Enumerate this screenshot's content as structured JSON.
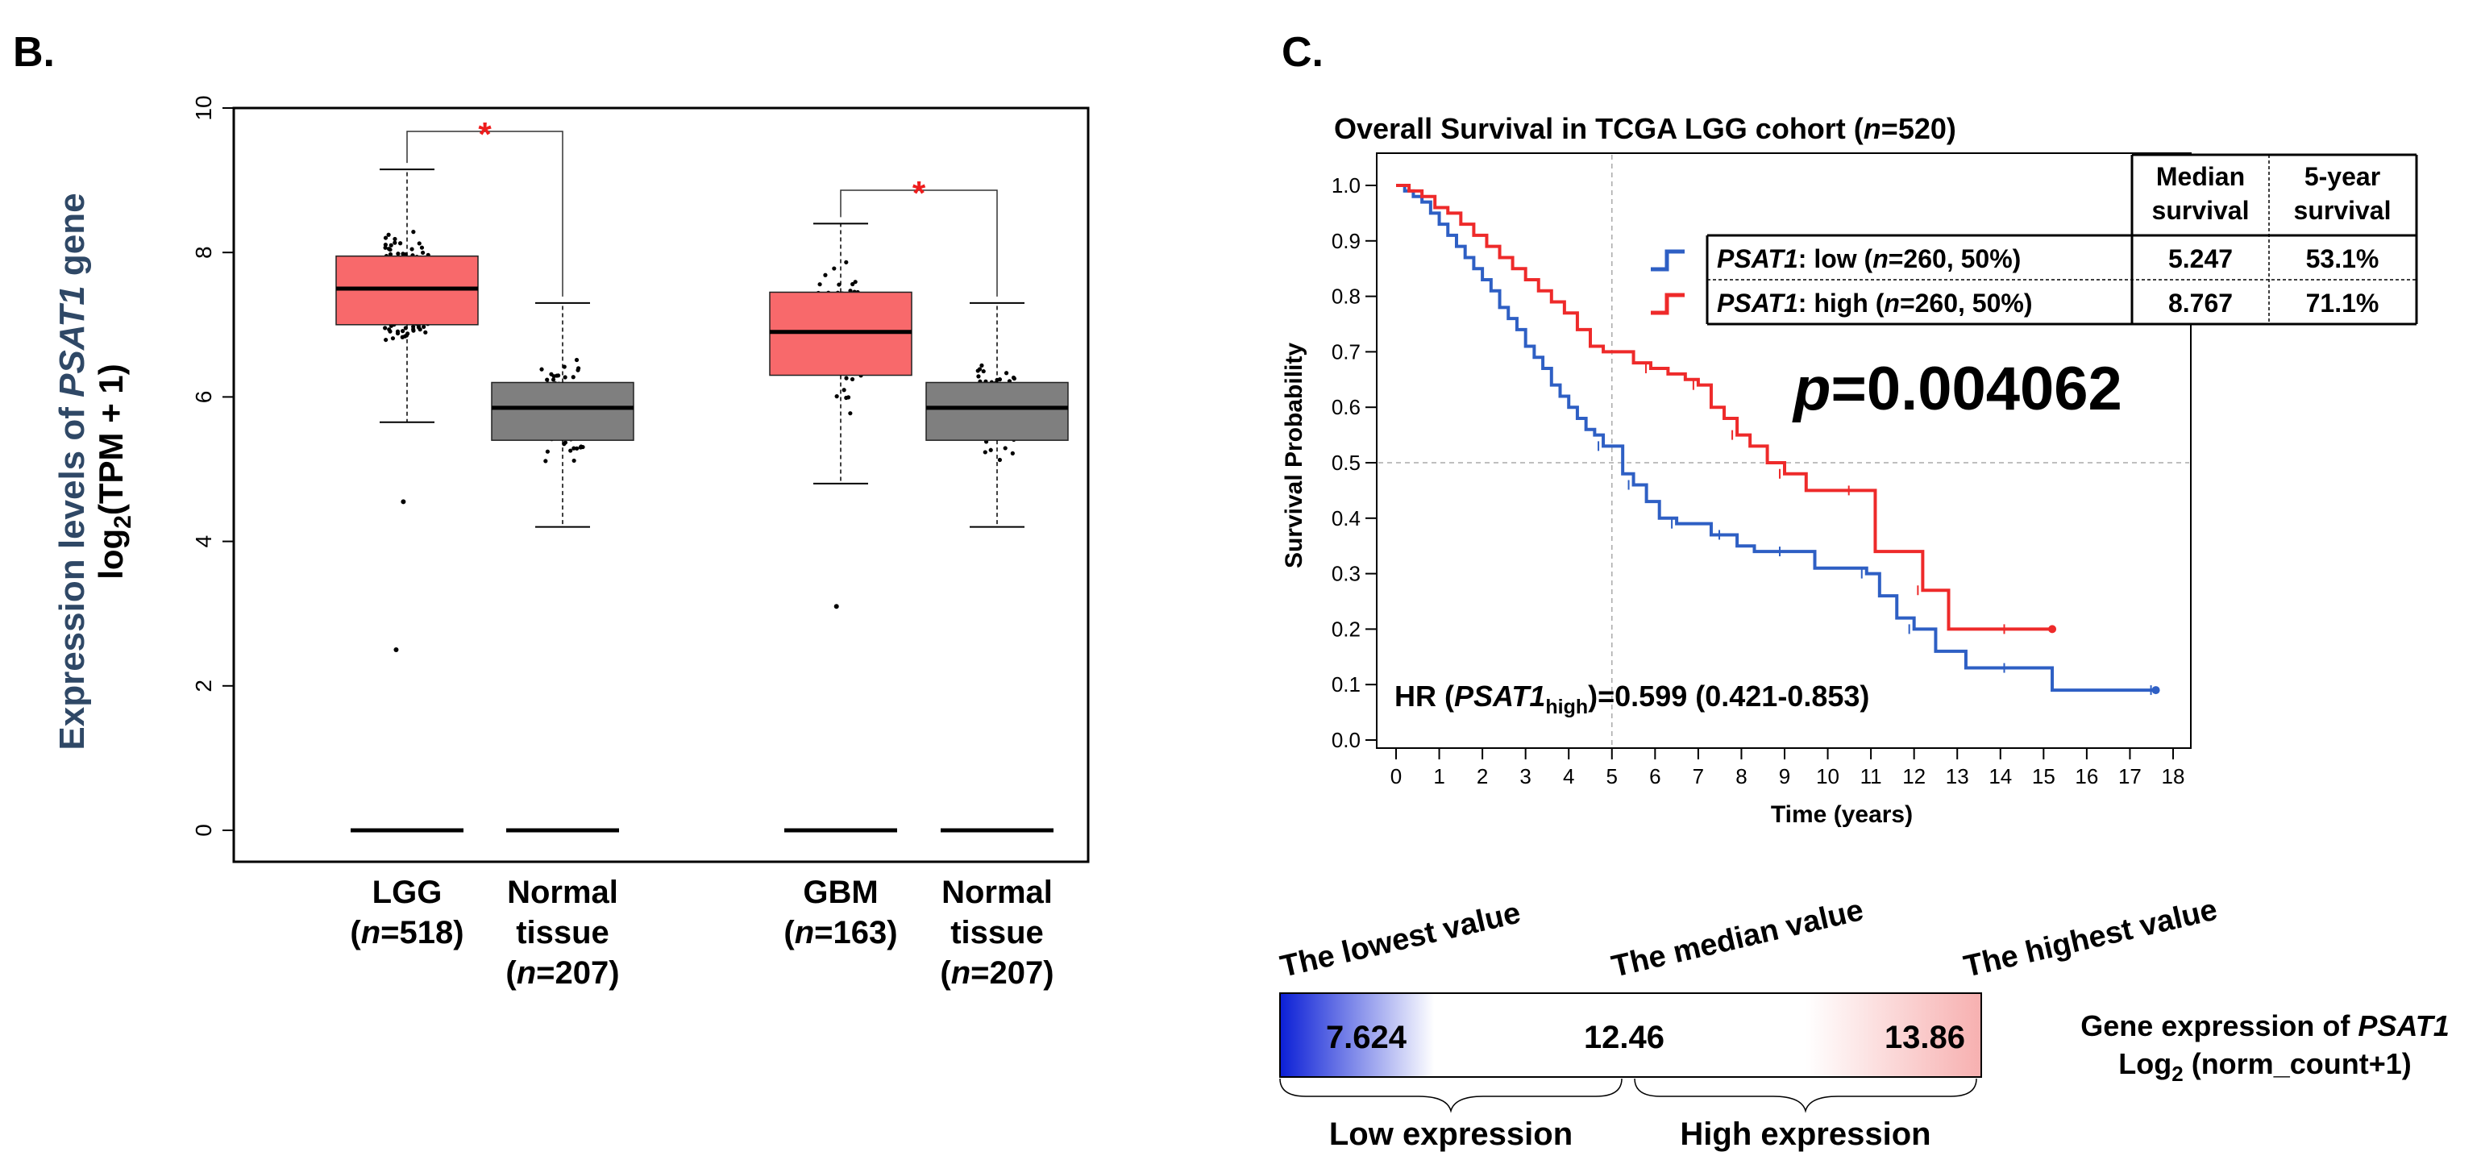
{
  "panel_b": {
    "label": "B.",
    "ylabel_line1_a": "Expression levels of ",
    "ylabel_line1_gene": "PSAT1",
    "ylabel_line1_b": " gene",
    "ylabel_line2_a": "log",
    "ylabel_line2_sub": "2",
    "ylabel_line2_b": "(TPM + 1)",
    "significance_mark": "*",
    "groups": [
      {
        "name": "LGG",
        "n_open": "(",
        "n_italic": "n",
        "n_rest": "=518)",
        "color": "#f8696b"
      },
      {
        "name_line1": "Normal",
        "name_line2": "tissue",
        "n_open": "(",
        "n_italic": "n",
        "n_rest": "=207)",
        "color": "#7f7f7f"
      },
      {
        "name": "GBM",
        "n_open": "(",
        "n_italic": "n",
        "n_rest": "=163)",
        "color": "#f8696b"
      },
      {
        "name_line1": "Normal",
        "name_line2": "tissue",
        "n_open": "(",
        "n_italic": "n",
        "n_rest": "=207)",
        "color": "#7f7f7f"
      }
    ]
  },
  "panel_c": {
    "label": "C.",
    "title_a": "Overall Survival in TCGA LGG cohort (",
    "title_n": "n",
    "title_b": "=520)",
    "xlabel": "Time (years)",
    "ylabel": "Survival Probability",
    "pvalue_p": "p",
    "pvalue_rest": "=0.004062",
    "hr_a": "HR (",
    "hr_gene": "PSAT1",
    "hr_sub": "high",
    "hr_b": ")=0.599 (0.421-0.853)",
    "table": {
      "col1_line1": "Median",
      "col1_line2": "survival",
      "col2_line1": "5-year",
      "col2_line2": "survival",
      "rows": [
        {
          "gene": "PSAT1",
          "label_a": ": low (",
          "n": "n",
          "label_b": "=260, 50%)",
          "median": "5.247",
          "five_year": "53.1%",
          "color": "#2e5fc4"
        },
        {
          "gene": "PSAT1",
          "label_a": ": high (",
          "n": "n",
          "label_b": "=260, 50%)",
          "median": "8.767",
          "five_year": "71.1%",
          "color": "#ee2a2a"
        }
      ]
    }
  },
  "gradient_legend": {
    "lowest_label": "The lowest value",
    "median_label": "The median value",
    "highest_label": "The highest value",
    "lowest_value": "7.624",
    "median_value": "12.46",
    "highest_value": "13.86",
    "low_expression": "Low expression",
    "high_expression": "High expression",
    "title_a": "Gene expression of ",
    "title_gene": "PSAT1",
    "title2_a": "Log",
    "title2_sub": "2",
    "title2_b": " (norm_count+1)",
    "low_color": "#0b1fd6",
    "high_color": "#f7b0b0"
  },
  "chart_data": [
    {
      "type": "box",
      "title": "",
      "xlabel": "",
      "ylabel": "Expression levels of PSAT1 gene log2(TPM + 1)",
      "ylim": [
        0,
        10
      ],
      "yticks": [
        0,
        2,
        4,
        6,
        8,
        10
      ],
      "categories": [
        "LGG (n=518)",
        "Normal tissue (n=207)",
        "GBM (n=163)",
        "Normal tissue (n=207)"
      ],
      "boxes": [
        {
          "q1": 7.0,
          "median": 7.5,
          "q3": 7.95,
          "whisker_low": 5.65,
          "whisker_high": 9.15,
          "outliers": [
            4.55,
            2.5
          ]
        },
        {
          "q1": 5.4,
          "median": 5.85,
          "q3": 6.2,
          "whisker_low": 4.2,
          "whisker_high": 7.3,
          "outliers": []
        },
        {
          "q1": 6.3,
          "median": 6.9,
          "q3": 7.45,
          "whisker_low": 4.8,
          "whisker_high": 8.4,
          "outliers": [
            3.1
          ]
        },
        {
          "q1": 5.4,
          "median": 5.85,
          "q3": 6.2,
          "whisker_low": 4.2,
          "whisker_high": 7.3,
          "outliers": []
        }
      ],
      "significance": [
        {
          "between": [
            0,
            1
          ],
          "label": "*"
        },
        {
          "between": [
            2,
            3
          ],
          "label": "*"
        }
      ]
    },
    {
      "type": "line",
      "title": "Overall Survival in TCGA LGG cohort (n=520)",
      "xlabel": "Time (years)",
      "ylabel": "Survival Probability",
      "xlim": [
        0,
        18.3
      ],
      "ylim": [
        0,
        1.02
      ],
      "xticks": [
        0,
        1,
        2,
        3,
        4,
        5,
        6,
        7,
        8,
        9,
        10,
        11,
        12,
        13,
        14,
        15,
        16,
        17,
        18
      ],
      "yticks": [
        0.0,
        0.1,
        0.2,
        0.3,
        0.4,
        0.5,
        0.6,
        0.7,
        0.8,
        0.9,
        1.0
      ],
      "reference_lines": {
        "x": 5,
        "y": 0.5
      },
      "series": [
        {
          "name": "PSAT1: low (n=260, 50%)",
          "x": [
            0,
            0.2,
            0.4,
            0.6,
            0.8,
            1.0,
            1.2,
            1.4,
            1.6,
            1.8,
            2.0,
            2.2,
            2.4,
            2.6,
            2.8,
            3.0,
            3.2,
            3.4,
            3.6,
            3.8,
            4.0,
            4.2,
            4.4,
            4.6,
            4.8,
            5.0,
            5.25,
            5.5,
            5.8,
            6.1,
            6.5,
            6.9,
            7.3,
            7.6,
            7.9,
            8.3,
            9.0,
            9.7,
            10.3,
            10.9,
            11.2,
            11.6,
            12.0,
            12.5,
            13.2,
            14.2,
            15.2,
            16.4,
            17.6
          ],
          "y": [
            1.0,
            0.99,
            0.98,
            0.97,
            0.95,
            0.93,
            0.91,
            0.89,
            0.87,
            0.85,
            0.83,
            0.81,
            0.78,
            0.76,
            0.74,
            0.71,
            0.69,
            0.67,
            0.64,
            0.62,
            0.6,
            0.58,
            0.56,
            0.55,
            0.53,
            0.53,
            0.48,
            0.46,
            0.43,
            0.4,
            0.39,
            0.39,
            0.37,
            0.37,
            0.35,
            0.34,
            0.34,
            0.31,
            0.31,
            0.3,
            0.26,
            0.22,
            0.2,
            0.16,
            0.13,
            0.13,
            0.09,
            0.09,
            0.09
          ]
        },
        {
          "name": "PSAT1: high (n=260, 50%)",
          "x": [
            0,
            0.3,
            0.6,
            0.9,
            1.2,
            1.5,
            1.8,
            2.1,
            2.4,
            2.7,
            3.0,
            3.3,
            3.6,
            3.9,
            4.2,
            4.5,
            4.8,
            5.1,
            5.5,
            5.9,
            6.3,
            6.7,
            7.0,
            7.3,
            7.6,
            7.9,
            8.2,
            8.6,
            9.0,
            9.5,
            10.2,
            10.6,
            11.1,
            11.5,
            12.2,
            12.8,
            13.5,
            14.2,
            15.2
          ],
          "y": [
            1.0,
            0.99,
            0.98,
            0.96,
            0.95,
            0.93,
            0.91,
            0.89,
            0.87,
            0.85,
            0.83,
            0.81,
            0.79,
            0.77,
            0.74,
            0.71,
            0.7,
            0.7,
            0.68,
            0.67,
            0.66,
            0.65,
            0.64,
            0.6,
            0.58,
            0.55,
            0.53,
            0.5,
            0.48,
            0.45,
            0.45,
            0.45,
            0.34,
            0.34,
            0.27,
            0.2,
            0.2,
            0.2,
            0.2
          ]
        }
      ],
      "hazard_ratio": "HR (PSAT1high)=0.599 (0.421-0.853)",
      "p_value": "p=0.004062"
    }
  ]
}
